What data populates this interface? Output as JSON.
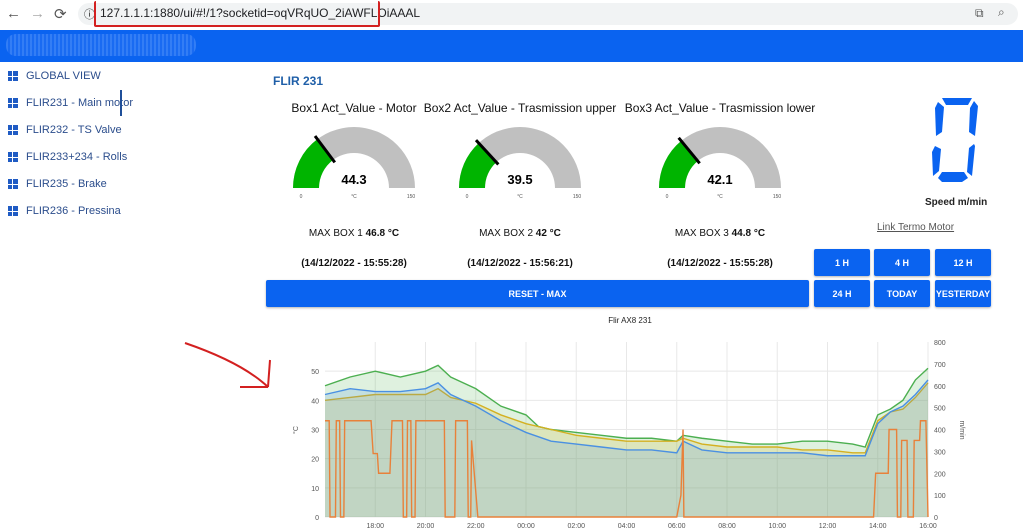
{
  "browser": {
    "url": "127.1.1.1:1880/ui/#!/1?socketid=oqVRqUO_2iAWFLOiAAAL",
    "icons": [
      "back-icon",
      "forward-icon",
      "reload-icon",
      "info-icon",
      "open-external-icon",
      "zoom-icon"
    ]
  },
  "colors": {
    "accent": "#0a63f0",
    "gauge_fill": "#00b400",
    "gauge_bg": "#c0c0c0",
    "title": "#1f5fa8"
  },
  "sidebar": {
    "items": [
      {
        "label": "GLOBAL VIEW",
        "active": false
      },
      {
        "label": "FLIR231 - Main motor",
        "active": true
      },
      {
        "label": "FLIR232 - TS Valve",
        "active": false
      },
      {
        "label": "FLIR233+234 - Rolls",
        "active": false
      },
      {
        "label": "FLIR235 - Brake",
        "active": false
      },
      {
        "label": "FLIR236 - Pressina",
        "active": false
      }
    ]
  },
  "page": {
    "title": "FLIR 231"
  },
  "gauges": [
    {
      "title": "Box1 Act_Value - Motor",
      "value": "44.3",
      "min": "0",
      "max": "150",
      "unit": "°C",
      "max_label": "MAX BOX 1",
      "max_value": "46.8 °C",
      "max_time": "(14/12/2022 - 15:55:28)"
    },
    {
      "title": "Box2 Act_Value - Trasmission upper",
      "value": "39.5",
      "min": "0",
      "max": "150",
      "unit": "°C",
      "max_label": "MAX BOX 2",
      "max_value": "42 °C",
      "max_time": "(14/12/2022 - 15:56:21)"
    },
    {
      "title": "Box3 Act_Value - Trasmission lower",
      "value": "42.1",
      "min": "0",
      "max": "150",
      "unit": "°C",
      "max_label": "MAX BOX 3",
      "max_value": "44.8 °C",
      "max_time": "(14/12/2022 - 15:55:28)"
    }
  ],
  "speed": {
    "value": "0",
    "label": "Speed m/min",
    "link": "Link Termo Motor"
  },
  "buttons": {
    "reset": "RESET - MAX",
    "range": [
      "1 H",
      "4 H",
      "12 H",
      "24 H",
      "TODAY",
      "YESTERDAY"
    ]
  },
  "chart_data": {
    "type": "area",
    "title": "Flir AX8 231",
    "ylabel": "°C",
    "y2label": "m/min",
    "ylim": [
      0,
      60
    ],
    "yticks": [
      0,
      10,
      20,
      30,
      40,
      50
    ],
    "y2lim": [
      0,
      800
    ],
    "y2ticks": [
      0,
      100,
      200,
      300,
      400,
      500,
      600,
      700,
      800
    ],
    "xrange": [
      "16:00",
      "16:00"
    ],
    "xticks": [
      "18:00",
      "20:00",
      "22:00",
      "00:00",
      "02:00",
      "04:00",
      "06:00",
      "08:00",
      "10:00",
      "12:00",
      "14:00",
      "16:00"
    ],
    "grid": true,
    "series": [
      {
        "color": "#4caf50",
        "axis": "left",
        "points": [
          [
            "16:00",
            45
          ],
          [
            "17:00",
            48
          ],
          [
            "18:00",
            50
          ],
          [
            "19:00",
            48
          ],
          [
            "20:00",
            50
          ],
          [
            "20:30",
            52
          ],
          [
            "21:00",
            48
          ],
          [
            "22:00",
            44
          ],
          [
            "23:00",
            38
          ],
          [
            "00:00",
            35
          ],
          [
            "00:30",
            31
          ],
          [
            "01:00",
            30
          ],
          [
            "02:00",
            29
          ],
          [
            "03:00",
            28
          ],
          [
            "04:00",
            27
          ],
          [
            "05:00",
            27
          ],
          [
            "06:00",
            26
          ],
          [
            "06:15",
            28
          ],
          [
            "07:00",
            27
          ],
          [
            "08:00",
            26
          ],
          [
            "09:00",
            25
          ],
          [
            "10:00",
            25
          ],
          [
            "11:00",
            26
          ],
          [
            "12:00",
            26
          ],
          [
            "13:00",
            25
          ],
          [
            "13:30",
            24
          ],
          [
            "14:00",
            35
          ],
          [
            "14:30",
            37
          ],
          [
            "15:00",
            40
          ],
          [
            "15:30",
            47
          ],
          [
            "16:00",
            51
          ]
        ]
      },
      {
        "color": "#d4b020",
        "axis": "left",
        "points": [
          [
            "16:00",
            40
          ],
          [
            "17:00",
            41
          ],
          [
            "18:00",
            42
          ],
          [
            "19:00",
            42
          ],
          [
            "20:00",
            42
          ],
          [
            "20:30",
            44
          ],
          [
            "21:00",
            41
          ],
          [
            "22:00",
            39
          ],
          [
            "23:00",
            35
          ],
          [
            "00:00",
            32
          ],
          [
            "01:00",
            30
          ],
          [
            "02:00",
            28
          ],
          [
            "03:00",
            27
          ],
          [
            "04:00",
            26
          ],
          [
            "05:00",
            26
          ],
          [
            "06:00",
            26
          ],
          [
            "06:15",
            27
          ],
          [
            "07:00",
            25
          ],
          [
            "08:00",
            24
          ],
          [
            "09:00",
            24
          ],
          [
            "10:00",
            24
          ],
          [
            "11:00",
            23
          ],
          [
            "12:00",
            23
          ],
          [
            "13:00",
            22
          ],
          [
            "13:30",
            22
          ],
          [
            "14:00",
            33
          ],
          [
            "14:30",
            36
          ],
          [
            "15:00",
            37
          ],
          [
            "15:30",
            41
          ],
          [
            "16:00",
            46
          ]
        ]
      },
      {
        "color": "#4a90e2",
        "axis": "left",
        "points": [
          [
            "16:00",
            42
          ],
          [
            "17:00",
            44
          ],
          [
            "18:00",
            43
          ],
          [
            "19:00",
            43
          ],
          [
            "20:00",
            44
          ],
          [
            "20:30",
            46
          ],
          [
            "21:00",
            42
          ],
          [
            "22:00",
            38
          ],
          [
            "23:00",
            33
          ],
          [
            "00:00",
            29
          ],
          [
            "01:00",
            26
          ],
          [
            "02:00",
            25
          ],
          [
            "03:00",
            24
          ],
          [
            "04:00",
            23
          ],
          [
            "05:00",
            23
          ],
          [
            "06:00",
            22
          ],
          [
            "06:15",
            26
          ],
          [
            "07:00",
            23
          ],
          [
            "08:00",
            22
          ],
          [
            "09:00",
            22
          ],
          [
            "10:00",
            22
          ],
          [
            "11:00",
            22
          ],
          [
            "12:00",
            21
          ],
          [
            "13:00",
            21
          ],
          [
            "13:30",
            21
          ],
          [
            "14:00",
            32
          ],
          [
            "14:30",
            36
          ],
          [
            "15:00",
            38
          ],
          [
            "15:30",
            42
          ],
          [
            "16:00",
            47
          ]
        ]
      },
      {
        "color": "#e8813a",
        "axis": "right",
        "points": [
          [
            "16:00",
            440
          ],
          [
            "16:10",
            440
          ],
          [
            "16:12",
            0
          ],
          [
            "16:25",
            0
          ],
          [
            "16:27",
            440
          ],
          [
            "16:35",
            440
          ],
          [
            "16:37",
            0
          ],
          [
            "16:45",
            0
          ],
          [
            "16:47",
            440
          ],
          [
            "17:50",
            440
          ],
          [
            "17:55",
            290
          ],
          [
            "18:05",
            290
          ],
          [
            "18:08",
            200
          ],
          [
            "18:35",
            200
          ],
          [
            "18:40",
            440
          ],
          [
            "19:05",
            440
          ],
          [
            "19:07",
            0
          ],
          [
            "19:15",
            0
          ],
          [
            "19:17",
            440
          ],
          [
            "19:25",
            440
          ],
          [
            "19:27",
            0
          ],
          [
            "19:35",
            0
          ],
          [
            "19:37",
            440
          ],
          [
            "20:45",
            440
          ],
          [
            "20:47",
            0
          ],
          [
            "21:10",
            0
          ],
          [
            "21:12",
            440
          ],
          [
            "21:40",
            440
          ],
          [
            "21:42",
            0
          ],
          [
            "21:48",
            0
          ],
          [
            "21:50",
            350
          ],
          [
            "22:05",
            0
          ],
          [
            "06:00",
            0
          ],
          [
            "06:10",
            100
          ],
          [
            "06:15",
            400
          ],
          [
            "06:17",
            0
          ],
          [
            "13:50",
            0
          ],
          [
            "13:55",
            200
          ],
          [
            "14:25",
            200
          ],
          [
            "14:27",
            400
          ],
          [
            "14:45",
            400
          ],
          [
            "14:47",
            0
          ],
          [
            "14:55",
            0
          ],
          [
            "14:57",
            350
          ],
          [
            "15:10",
            350
          ],
          [
            "15:12",
            0
          ],
          [
            "15:25",
            0
          ],
          [
            "15:27",
            350
          ],
          [
            "15:40",
            350
          ],
          [
            "15:42",
            440
          ],
          [
            "15:55",
            440
          ],
          [
            "16:00",
            0
          ]
        ]
      }
    ]
  }
}
